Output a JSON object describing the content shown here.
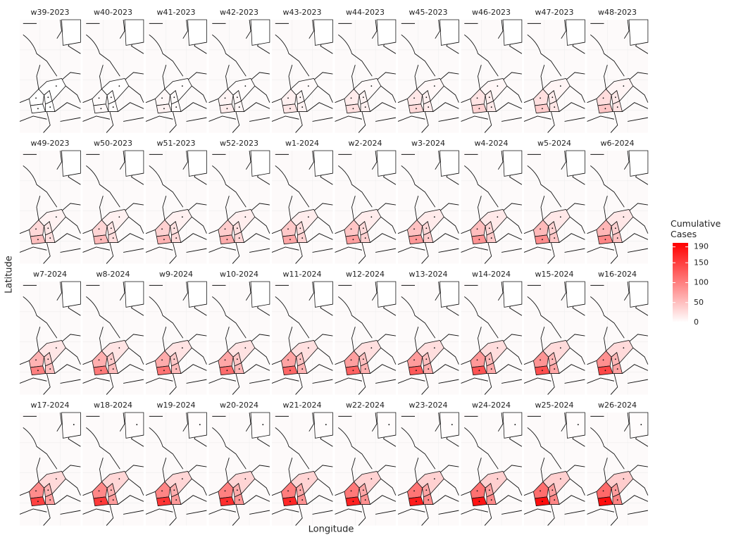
{
  "chart_data": {
    "type": "choropleth-facets",
    "facets": [
      "w39-2023",
      "w40-2023",
      "w41-2023",
      "w42-2023",
      "w43-2023",
      "w44-2023",
      "w45-2023",
      "w46-2023",
      "w47-2023",
      "w48-2023",
      "w49-2023",
      "w50-2023",
      "w51-2023",
      "w52-2023",
      "w1-2024",
      "w2-2024",
      "w3-2024",
      "w4-2024",
      "w5-2024",
      "w6-2024",
      "w7-2024",
      "w8-2024",
      "w9-2024",
      "w10-2024",
      "w11-2024",
      "w12-2024",
      "w13-2024",
      "w14-2024",
      "w15-2024",
      "w16-2024",
      "w17-2024",
      "w18-2024",
      "w19-2024",
      "w20-2024",
      "w21-2024",
      "w22-2024",
      "w23-2024",
      "w24-2024",
      "w25-2024",
      "w26-2024"
    ],
    "series": [
      {
        "values": [
          0,
          3,
          6,
          9,
          12,
          15,
          18,
          21,
          24,
          27,
          30,
          33,
          36,
          39,
          42,
          45,
          48,
          51,
          54,
          57,
          60,
          63,
          66,
          69,
          72,
          75,
          78,
          81,
          84,
          87,
          90,
          93,
          96,
          99,
          102,
          105,
          108,
          111,
          114,
          117
        ]
      },
      {
        "values": [
          0,
          5,
          10,
          15,
          20,
          25,
          30,
          35,
          40,
          45,
          50,
          55,
          60,
          65,
          70,
          75,
          80,
          85,
          90,
          95,
          100,
          105,
          110,
          115,
          120,
          125,
          130,
          135,
          140,
          145,
          150,
          155,
          160,
          165,
          170,
          175,
          180,
          185,
          190,
          190
        ]
      },
      {
        "values": [
          0,
          2,
          4,
          6,
          8,
          10,
          12,
          14,
          16,
          18,
          20,
          22,
          24,
          26,
          28,
          30,
          32,
          34,
          36,
          38,
          40,
          42,
          44,
          46,
          48,
          50,
          52,
          54,
          56,
          58,
          60,
          62,
          64,
          66,
          68,
          70,
          72,
          74,
          76,
          78
        ]
      },
      {
        "values": [
          0,
          2,
          5,
          7,
          10,
          12,
          15,
          17,
          20,
          22,
          25,
          27,
          30,
          32,
          35,
          37,
          40,
          42,
          45,
          47,
          50,
          52,
          55,
          57,
          60,
          62,
          65,
          67,
          70,
          72,
          75,
          77,
          80,
          82,
          85,
          87,
          90,
          92,
          95,
          97
        ]
      },
      {
        "values": [
          0,
          1,
          2,
          3,
          4,
          5,
          6,
          7,
          8,
          9,
          10,
          11,
          12,
          13,
          14,
          15,
          16,
          17,
          18,
          19,
          20,
          21,
          22,
          23,
          24,
          25,
          26,
          27,
          28,
          29,
          30,
          31,
          32,
          33,
          34,
          35,
          36,
          37,
          38,
          39
        ]
      },
      {
        "values": [
          0,
          0,
          0,
          0,
          0,
          0,
          0,
          0,
          0,
          0,
          0,
          0,
          0,
          0,
          0,
          0,
          0,
          0,
          0,
          0,
          0,
          0,
          0,
          0,
          0,
          0,
          0,
          0,
          0,
          0,
          2,
          2,
          2,
          2,
          2,
          2,
          2,
          2,
          2,
          2
        ]
      }
    ],
    "xlabel": "Longitude",
    "ylabel": "Latitude",
    "legend_title": "Cumulative Cases",
    "colorbar_lim": [
      0,
      200
    ],
    "colorbar_ticks": [
      0,
      50,
      100,
      150,
      190
    ],
    "color_low": "#ffffff",
    "color_high": "#ff0000"
  }
}
